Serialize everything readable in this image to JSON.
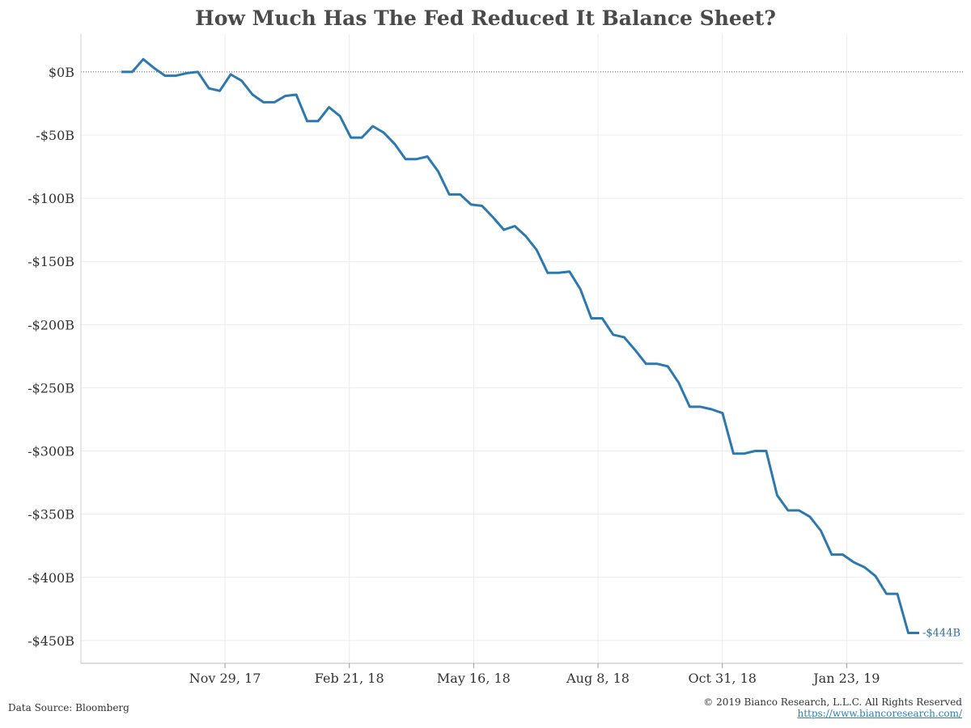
{
  "chart_data": {
    "type": "line",
    "title": "How Much Has The Fed Reduced It Balance Sheet?",
    "x_tick_labels": [
      "Nov 29, 17",
      "Feb 21, 18",
      "May 16, 18",
      "Aug 8, 18",
      "Oct 31, 18",
      "Jan 23, 19"
    ],
    "x_start_date": "2017-09-20",
    "x_end_date": "2019-03-13",
    "y_ticks": [
      0,
      -50,
      -100,
      -150,
      -200,
      -250,
      -300,
      -350,
      -400,
      -450
    ],
    "y_tick_labels": [
      "$0B",
      "-$50B",
      "-$100B",
      "-$150B",
      "-$200B",
      "-$250B",
      "-$300B",
      "-$350B",
      "-$400B",
      "-$450B"
    ],
    "ylim": [
      -468,
      30
    ],
    "grid": true,
    "zero_line": "dotted",
    "line_color": "#2c78b0",
    "end_label": "-$444B",
    "series": [
      {
        "values": [
          0,
          0,
          10,
          3,
          -3,
          -3,
          -1,
          0,
          -13,
          -15,
          -2,
          -7,
          -18,
          -24,
          -24,
          -19,
          -18,
          -39,
          -39,
          -28,
          -35,
          -52,
          -52,
          -43,
          -48,
          -57,
          -69,
          -69,
          -67,
          -79,
          -97,
          -97,
          -105,
          -106,
          -115,
          -125,
          -122,
          -130,
          -141,
          -159,
          -159,
          -158,
          -172,
          -195,
          -195,
          -208,
          -210,
          -220,
          -231,
          -231,
          -233,
          -246,
          -265,
          -265,
          -267,
          -270,
          -302,
          -302,
          -300,
          -300,
          -335,
          -347,
          -347,
          -352,
          -363,
          -382,
          -382,
          -388,
          -392,
          -399,
          -413,
          -413,
          -444,
          -444
        ]
      }
    ]
  },
  "footer": {
    "source": "Data Source: Bloomberg",
    "copyright": "© 2019 Bianco Research, L.L.C. All Rights Reserved",
    "website": "https://www.biancoresearch.com/"
  }
}
